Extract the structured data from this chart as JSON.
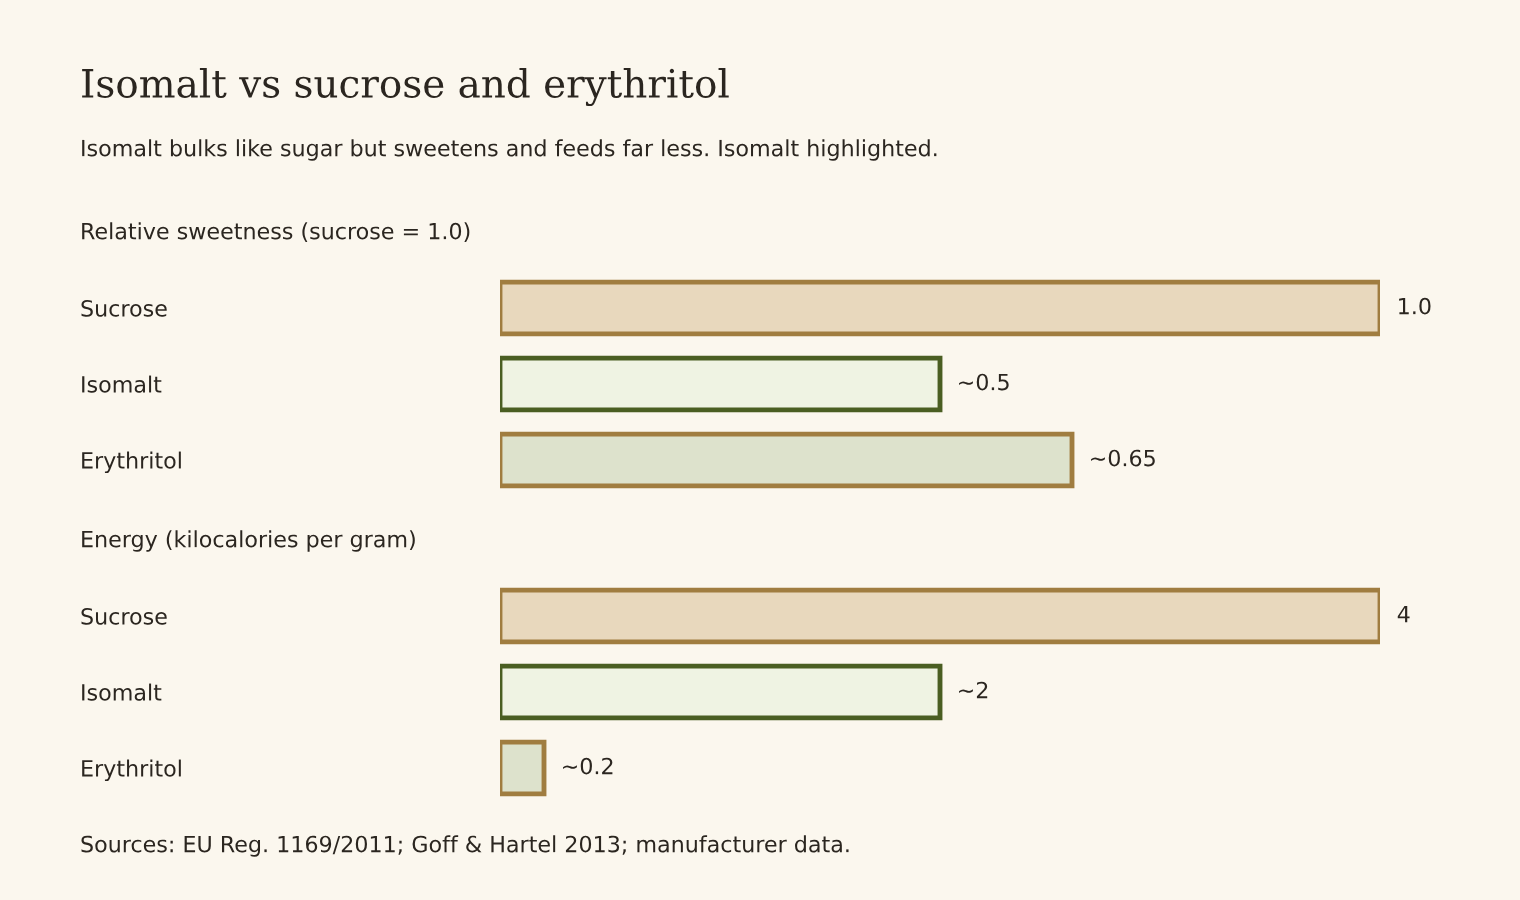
{
  "chart_data": [
    {
      "type": "bar",
      "orientation": "horizontal",
      "title": "Isomalt vs sucrose and erythritol",
      "subtitle": "Isomalt bulks like sugar but sweetens and feeds far less. Isomalt highlighted.",
      "ylabel": "Relative sweetness (sucrose = 1.0)",
      "categories": [
        "Sucrose",
        "Isomalt",
        "Erythritol"
      ],
      "series": [
        {
          "values": [
            1.0,
            0.5,
            0.65
          ],
          "colors": [
            "#e8d8bd",
            "#eff3e3",
            "#dde2cc"
          ],
          "value_labels": [
            "1.0",
            "~0.5",
            "~0.65"
          ]
        }
      ],
      "xlim": [
        0,
        1.0
      ],
      "tick_labels": "y"
    },
    {
      "type": "bar",
      "orientation": "horizontal",
      "ylabel": "Energy (kilocalories per gram)",
      "categories": [
        "Sucrose",
        "Isomalt",
        "Erythritol"
      ],
      "series": [
        {
          "values": [
            4,
            2,
            0.2
          ],
          "colors": [
            "#e8d8bd",
            "#eff3e3",
            "#dde2cc"
          ],
          "value_labels": [
            "4",
            "~2",
            "~0.2"
          ]
        }
      ],
      "xlim": [
        0,
        4
      ],
      "tick_labels": "y",
      "annotations": [
        "Sources: EU Reg. 1169/2011; Goff & Hartel 2013; manufacturer data."
      ]
    }
  ]
}
